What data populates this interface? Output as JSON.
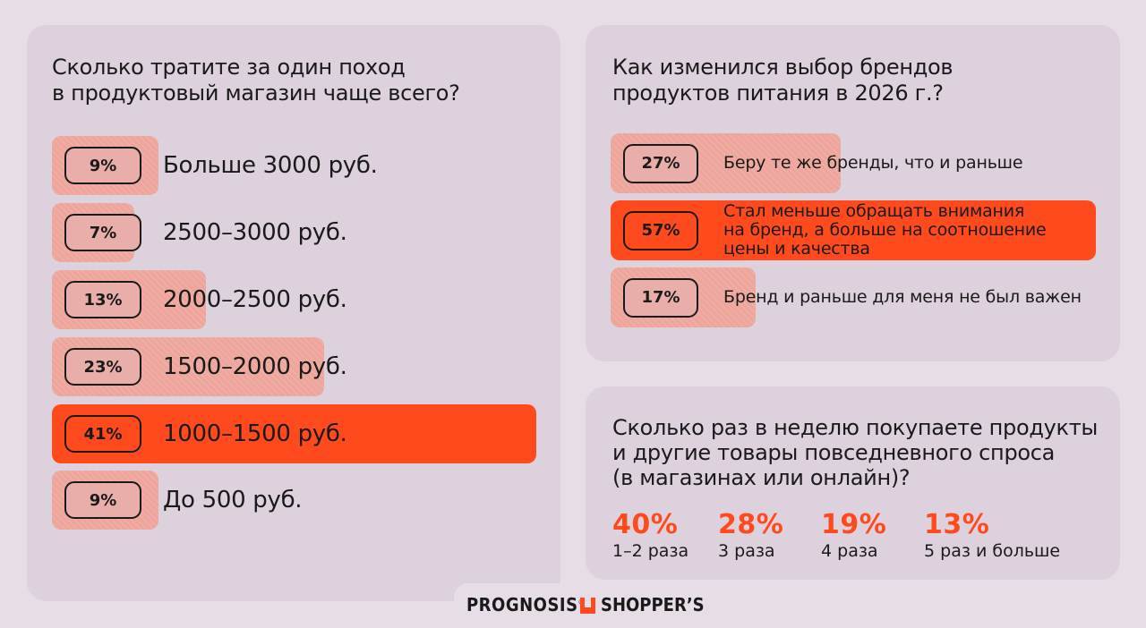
{
  "colors": {
    "accent": "#ff4a1e",
    "bar": "#eda59c",
    "card": "#dcd1dc",
    "background": "#e6dde6"
  },
  "chart_data": [
    {
      "type": "bar",
      "title": "Сколько тратите за один поход в продуктовый магазин чаще всего?",
      "categories": [
        "Больше 3000 руб.",
        "2500–3000 руб.",
        "2000–2500 руб.",
        "1500–2000 руб.",
        "1000–1500 руб.",
        "До 500 руб."
      ],
      "values": [
        9,
        7,
        13,
        23,
        41,
        9
      ],
      "labels": [
        "9%",
        "7%",
        "13%",
        "23%",
        "41%",
        "9%"
      ],
      "highlight_index": 4
    },
    {
      "type": "bar",
      "title": "Как изменился выбор брендов продуктов питания в 2026 г.?",
      "categories": [
        "Беру те же бренды, что и раньше",
        "Стал меньше обращать внимания на бренд, а больше на соотношение цены и качества",
        "Бренд и раньше для меня не был важен"
      ],
      "values": [
        27,
        57,
        17
      ],
      "labels": [
        "27%",
        "57%",
        "17%"
      ],
      "highlight_index": 1
    },
    {
      "type": "table",
      "title": "Сколько раз в неделю покупаете продукты и другие товары повседневного спроса (в магазинах или онлайн)?",
      "categories": [
        "1–2 раза",
        "3 раза",
        "4 раза",
        "5 раз и больше"
      ],
      "values": [
        40,
        28,
        19,
        13
      ],
      "labels": [
        "40%",
        "28%",
        "19%",
        "13%"
      ]
    }
  ],
  "spend": {
    "title_lines": [
      "Сколько тратите за один поход",
      "в продуктовый магазин чаще всего?"
    ],
    "rows": [
      {
        "pct": "9%",
        "label": "Больше 3000 руб."
      },
      {
        "pct": "7%",
        "label": "2500–3000 руб."
      },
      {
        "pct": "13%",
        "label": "2000–2500 руб."
      },
      {
        "pct": "23%",
        "label": "1500–2000 руб."
      },
      {
        "pct": "41%",
        "label": "1000–1500 руб."
      },
      {
        "pct": "9%",
        "label": "До 500 руб."
      }
    ]
  },
  "brands": {
    "title_lines": [
      "Как изменился выбор брендов",
      "продуктов питания в 2026 г.?"
    ],
    "rows": [
      {
        "pct": "27%",
        "label_lines": [
          "Беру те же бренды, что и раньше"
        ]
      },
      {
        "pct": "57%",
        "label_lines": [
          "Стал меньше обращать внимания",
          "на бренд, а больше на соотношение",
          "цены и качества"
        ]
      },
      {
        "pct": "17%",
        "label_lines": [
          "Бренд и раньше для меня не был важен"
        ]
      }
    ]
  },
  "frequency": {
    "title_lines": [
      "Сколько раз в неделю покупаете продукты",
      "и другие товары повседневного спроса",
      "(в магазинах или онлайн)?"
    ],
    "stats": [
      {
        "pct": "40%",
        "label": "1–2 раза"
      },
      {
        "pct": "28%",
        "label": "3 раза"
      },
      {
        "pct": "19%",
        "label": "4 раза"
      },
      {
        "pct": "13%",
        "label": "5 раз и больше"
      }
    ]
  },
  "footer": {
    "logo_prognosis": "PROGNOSIS",
    "logo_shoppers": "SHOPPER’S",
    "icons": [
      "prognosis-logo",
      "shoppers-bag-icon"
    ]
  }
}
